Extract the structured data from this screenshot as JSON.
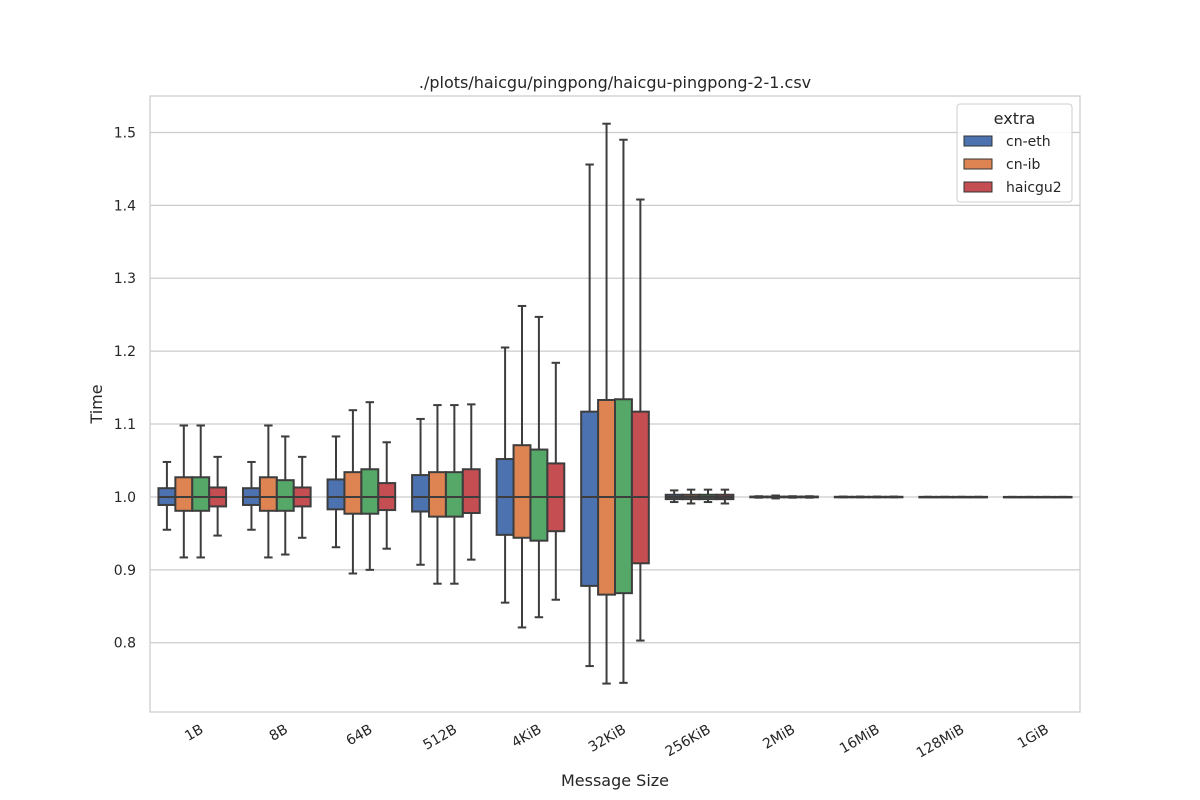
{
  "chart_data": {
    "type": "box",
    "title": "./plots/haicgu/pingpong/haicgu-pingpong-2-1.csv",
    "xlabel": "Message Size",
    "ylabel": "Time",
    "ylim": [
      0.705,
      1.55
    ],
    "yticks": [
      "0.8",
      "0.9",
      "1.0",
      "1.1",
      "1.2",
      "1.3",
      "1.4",
      "1.5"
    ],
    "grid": true,
    "categories": [
      "1B",
      "8B",
      "64B",
      "512B",
      "4KiB",
      "32KiB",
      "256KiB",
      "2MiB",
      "16MiB",
      "128MiB",
      "1GiB"
    ],
    "legend": {
      "title": "extra",
      "position": "top-right",
      "entries": [
        {
          "label": "cn-eth",
          "color": "#4c72b0"
        },
        {
          "label": "cn-ib",
          "color": "#dd8452"
        },
        {
          "label": "haicgu2",
          "color": "#c44e52"
        }
      ]
    },
    "series": [
      {
        "name": "cn-eth",
        "color": "#4c72b0",
        "boxes": [
          {
            "category": "1B",
            "whislo": 0.955,
            "q1": 0.989,
            "med": 1.0,
            "q3": 1.012,
            "whishi": 1.048
          },
          {
            "category": "8B",
            "whislo": 0.955,
            "q1": 0.989,
            "med": 1.0,
            "q3": 1.012,
            "whishi": 1.048
          },
          {
            "category": "64B",
            "whislo": 0.931,
            "q1": 0.983,
            "med": 1.0,
            "q3": 1.024,
            "whishi": 1.083
          },
          {
            "category": "512B",
            "whislo": 0.907,
            "q1": 0.98,
            "med": 1.0,
            "q3": 1.03,
            "whishi": 1.107
          },
          {
            "category": "4KiB",
            "whislo": 0.855,
            "q1": 0.948,
            "med": 1.0,
            "q3": 1.052,
            "whishi": 1.205
          },
          {
            "category": "32KiB",
            "whislo": 0.768,
            "q1": 0.878,
            "med": 1.0,
            "q3": 1.117,
            "whishi": 1.456
          },
          {
            "category": "256KiB",
            "whislo": 0.993,
            "q1": 0.997,
            "med": 1.0,
            "q3": 1.003,
            "whishi": 1.009
          },
          {
            "category": "2MiB",
            "whislo": 0.999,
            "q1": 0.9995,
            "med": 1.0,
            "q3": 1.0005,
            "whishi": 1.001
          },
          {
            "category": "16MiB",
            "whislo": 0.9995,
            "q1": 0.9998,
            "med": 1.0,
            "q3": 1.0002,
            "whishi": 1.0005
          },
          {
            "category": "128MiB",
            "whislo": 0.9998,
            "q1": 0.9999,
            "med": 1.0,
            "q3": 1.0001,
            "whishi": 1.0002
          },
          {
            "category": "1GiB",
            "whislo": 0.9999,
            "q1": 0.99995,
            "med": 1.0,
            "q3": 1.00005,
            "whishi": 1.0001
          }
        ]
      },
      {
        "name": "cn-ib",
        "color": "#dd8452",
        "boxes": [
          {
            "category": "1B",
            "whislo": 0.917,
            "q1": 0.981,
            "med": 1.0,
            "q3": 1.027,
            "whishi": 1.098
          },
          {
            "category": "8B",
            "whislo": 0.917,
            "q1": 0.981,
            "med": 1.0,
            "q3": 1.027,
            "whishi": 1.098
          },
          {
            "category": "64B",
            "whislo": 0.895,
            "q1": 0.977,
            "med": 1.0,
            "q3": 1.034,
            "whishi": 1.119
          },
          {
            "category": "512B",
            "whislo": 0.881,
            "q1": 0.973,
            "med": 1.0,
            "q3": 1.034,
            "whishi": 1.126
          },
          {
            "category": "4KiB",
            "whislo": 0.821,
            "q1": 0.944,
            "med": 1.0,
            "q3": 1.071,
            "whishi": 1.262
          },
          {
            "category": "32KiB",
            "whislo": 0.744,
            "q1": 0.866,
            "med": 1.0,
            "q3": 1.133,
            "whishi": 1.512
          },
          {
            "category": "256KiB",
            "whislo": 0.991,
            "q1": 0.997,
            "med": 1.0,
            "q3": 1.003,
            "whishi": 1.01
          },
          {
            "category": "2MiB",
            "whislo": 0.998,
            "q1": 0.9995,
            "med": 1.0,
            "q3": 1.0005,
            "whishi": 1.002
          },
          {
            "category": "16MiB",
            "whislo": 0.9995,
            "q1": 0.9998,
            "med": 1.0,
            "q3": 1.0002,
            "whishi": 1.0005
          },
          {
            "category": "128MiB",
            "whislo": 0.9998,
            "q1": 0.9999,
            "med": 1.0,
            "q3": 1.0001,
            "whishi": 1.0002
          },
          {
            "category": "1GiB",
            "whislo": 0.9999,
            "q1": 0.99995,
            "med": 1.0,
            "q3": 1.00005,
            "whishi": 1.0001
          }
        ]
      },
      {
        "name": "",
        "color": "#55a868",
        "boxes": [
          {
            "category": "1B",
            "whislo": 0.917,
            "q1": 0.981,
            "med": 1.0,
            "q3": 1.027,
            "whishi": 1.098
          },
          {
            "category": "8B",
            "whislo": 0.921,
            "q1": 0.981,
            "med": 1.0,
            "q3": 1.023,
            "whishi": 1.083
          },
          {
            "category": "64B",
            "whislo": 0.9,
            "q1": 0.977,
            "med": 1.0,
            "q3": 1.038,
            "whishi": 1.13
          },
          {
            "category": "512B",
            "whislo": 0.881,
            "q1": 0.973,
            "med": 1.0,
            "q3": 1.034,
            "whishi": 1.126
          },
          {
            "category": "4KiB",
            "whislo": 0.835,
            "q1": 0.94,
            "med": 1.0,
            "q3": 1.065,
            "whishi": 1.247
          },
          {
            "category": "32KiB",
            "whislo": 0.745,
            "q1": 0.868,
            "med": 1.0,
            "q3": 1.134,
            "whishi": 1.49
          },
          {
            "category": "256KiB",
            "whislo": 0.993,
            "q1": 0.997,
            "med": 1.0,
            "q3": 1.003,
            "whishi": 1.01
          },
          {
            "category": "2MiB",
            "whislo": 0.999,
            "q1": 0.9995,
            "med": 1.0,
            "q3": 1.0005,
            "whishi": 1.001
          },
          {
            "category": "16MiB",
            "whislo": 0.9995,
            "q1": 0.9998,
            "med": 1.0,
            "q3": 1.0002,
            "whishi": 1.0005
          },
          {
            "category": "128MiB",
            "whislo": 0.9998,
            "q1": 0.9999,
            "med": 1.0,
            "q3": 1.0001,
            "whishi": 1.0002
          },
          {
            "category": "1GiB",
            "whislo": 0.9999,
            "q1": 0.99995,
            "med": 1.0,
            "q3": 1.00005,
            "whishi": 1.0001
          }
        ]
      },
      {
        "name": "haicgu2",
        "color": "#c44e52",
        "boxes": [
          {
            "category": "1B",
            "whislo": 0.947,
            "q1": 0.987,
            "med": 1.0,
            "q3": 1.013,
            "whishi": 1.055
          },
          {
            "category": "8B",
            "whislo": 0.944,
            "q1": 0.987,
            "med": 1.0,
            "q3": 1.013,
            "whishi": 1.055
          },
          {
            "category": "64B",
            "whislo": 0.929,
            "q1": 0.982,
            "med": 1.0,
            "q3": 1.019,
            "whishi": 1.075
          },
          {
            "category": "512B",
            "whislo": 0.914,
            "q1": 0.978,
            "med": 1.0,
            "q3": 1.038,
            "whishi": 1.127
          },
          {
            "category": "4KiB",
            "whislo": 0.859,
            "q1": 0.953,
            "med": 1.0,
            "q3": 1.046,
            "whishi": 1.184
          },
          {
            "category": "32KiB",
            "whislo": 0.803,
            "q1": 0.909,
            "med": 1.0,
            "q3": 1.117,
            "whishi": 1.408
          },
          {
            "category": "256KiB",
            "whislo": 0.991,
            "q1": 0.997,
            "med": 1.0,
            "q3": 1.003,
            "whishi": 1.01
          },
          {
            "category": "2MiB",
            "whislo": 0.999,
            "q1": 0.9995,
            "med": 1.0,
            "q3": 1.0005,
            "whishi": 1.001
          },
          {
            "category": "16MiB",
            "whislo": 0.9995,
            "q1": 0.9998,
            "med": 1.0,
            "q3": 1.0002,
            "whishi": 1.0005
          },
          {
            "category": "128MiB",
            "whislo": 0.9998,
            "q1": 0.9999,
            "med": 1.0,
            "q3": 1.0001,
            "whishi": 1.0002
          },
          {
            "category": "1GiB",
            "whislo": 0.9999,
            "q1": 0.99995,
            "med": 1.0,
            "q3": 1.00005,
            "whishi": 1.0001
          }
        ]
      }
    ]
  }
}
